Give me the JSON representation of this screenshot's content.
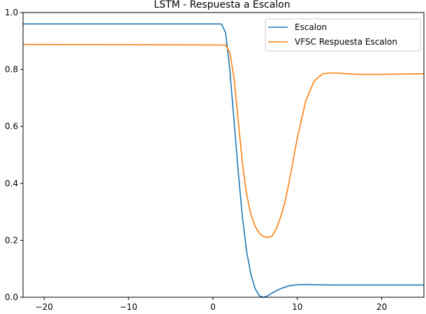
{
  "chart_data": {
    "type": "line",
    "title": "LSTM - Respuesta a Escalon",
    "xlabel": "",
    "ylabel": "",
    "xlim": [
      -22.5,
      25
    ],
    "ylim": [
      0.0,
      1.0
    ],
    "xticks": [
      -20,
      -10,
      0,
      10,
      20
    ],
    "xtick_labels": [
      "−20",
      "−10",
      "0",
      "10",
      "20"
    ],
    "yticks": [
      0.0,
      0.2,
      0.4,
      0.6,
      0.8,
      1.0
    ],
    "ytick_labels": [
      "0.0",
      "0.2",
      "0.4",
      "0.6",
      "0.8",
      "1.0"
    ],
    "grid": false,
    "legend_position": "top-right",
    "series": [
      {
        "name": "Escalon",
        "color": "#1f77b4",
        "x": [
          -22.5,
          1.0,
          1.5,
          2.0,
          2.5,
          3.0,
          3.5,
          4.0,
          4.5,
          5.0,
          5.5,
          6.0,
          6.5,
          7.0,
          8.0,
          9.0,
          10.0,
          11.0,
          12.0,
          14.0,
          16.0,
          20.0,
          25.0
        ],
        "y": [
          0.96,
          0.96,
          0.93,
          0.8,
          0.62,
          0.44,
          0.28,
          0.16,
          0.08,
          0.03,
          0.005,
          0.0,
          0.005,
          0.015,
          0.03,
          0.04,
          0.044,
          0.045,
          0.044,
          0.043,
          0.043,
          0.043,
          0.043
        ]
      },
      {
        "name": "VFSC Respuesta Escalon",
        "color": "#ff7f0e",
        "x": [
          -22.5,
          1.5,
          2.0,
          2.5,
          3.0,
          3.5,
          4.0,
          4.5,
          5.0,
          5.5,
          6.0,
          6.5,
          7.0,
          7.5,
          8.0,
          8.5,
          9.0,
          9.5,
          10.0,
          11.0,
          12.0,
          13.0,
          14.0,
          15.0,
          17.0,
          20.0,
          25.0
        ],
        "y": [
          0.888,
          0.886,
          0.86,
          0.77,
          0.62,
          0.47,
          0.36,
          0.29,
          0.25,
          0.225,
          0.213,
          0.21,
          0.215,
          0.24,
          0.28,
          0.33,
          0.4,
          0.48,
          0.56,
          0.69,
          0.76,
          0.785,
          0.788,
          0.787,
          0.783,
          0.783,
          0.785
        ]
      }
    ]
  }
}
